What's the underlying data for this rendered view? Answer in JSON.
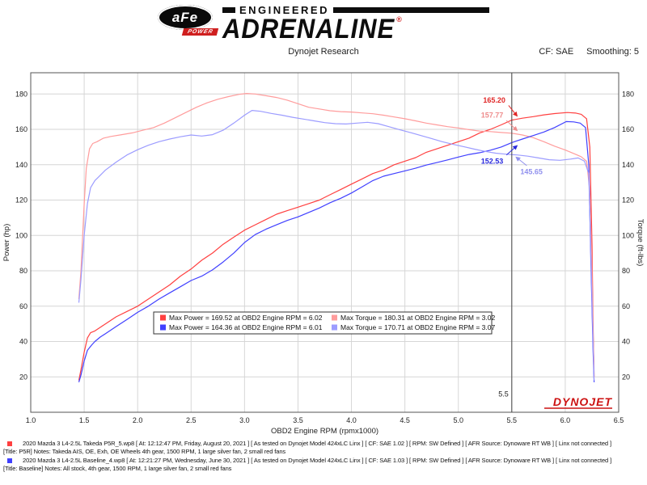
{
  "header": {
    "logo": {
      "afe": "aFe",
      "power": "POWER",
      "engineered": "ENGINEERED",
      "adrenaline": "ADRENALINE",
      "reg": "®"
    },
    "subtitle": "Dynojet Research",
    "cf": "CF: SAE",
    "smoothing": "Smoothing: 5"
  },
  "chart_data": {
    "type": "line",
    "title": "",
    "xlabel": "OBD2 Engine RPM (rpmx1000)",
    "ylabel_left": "Power (hp)",
    "ylabel_right": "Torque (ft-lbs)",
    "xlim": [
      1.0,
      6.5
    ],
    "ylim": [
      0,
      192
    ],
    "xticks": [
      1.0,
      1.5,
      2.0,
      2.5,
      3.0,
      3.5,
      4.0,
      4.5,
      5.0,
      5.5,
      6.0,
      6.5
    ],
    "yticks": [
      20,
      40,
      60,
      80,
      100,
      120,
      140,
      160,
      180
    ],
    "grid": true,
    "cursor": {
      "x": 5.5,
      "label": "5.5"
    },
    "watermark": {
      "text": "DYNOJET",
      "color": "#cc1111"
    },
    "series": [
      {
        "id": "takeda-power",
        "name": "Takeda Power (hp)",
        "color": "#ff4040",
        "points": [
          [
            1.45,
            18
          ],
          [
            1.47,
            24
          ],
          [
            1.5,
            34
          ],
          [
            1.53,
            42
          ],
          [
            1.56,
            45
          ],
          [
            1.6,
            46
          ],
          [
            1.65,
            48
          ],
          [
            1.7,
            50
          ],
          [
            1.8,
            54
          ],
          [
            1.9,
            57
          ],
          [
            2.0,
            60
          ],
          [
            2.1,
            64
          ],
          [
            2.2,
            68
          ],
          [
            2.3,
            72
          ],
          [
            2.4,
            77
          ],
          [
            2.5,
            81
          ],
          [
            2.6,
            86
          ],
          [
            2.7,
            90
          ],
          [
            2.8,
            95
          ],
          [
            2.9,
            99
          ],
          [
            3.0,
            103
          ],
          [
            3.1,
            106
          ],
          [
            3.2,
            109
          ],
          [
            3.3,
            112
          ],
          [
            3.4,
            114
          ],
          [
            3.5,
            116
          ],
          [
            3.6,
            118
          ],
          [
            3.7,
            120
          ],
          [
            3.8,
            123
          ],
          [
            3.9,
            126
          ],
          [
            4.0,
            129
          ],
          [
            4.1,
            132
          ],
          [
            4.2,
            135
          ],
          [
            4.3,
            137
          ],
          [
            4.4,
            140
          ],
          [
            4.5,
            142
          ],
          [
            4.6,
            144
          ],
          [
            4.7,
            147
          ],
          [
            4.8,
            149
          ],
          [
            4.9,
            151
          ],
          [
            5.0,
            153
          ],
          [
            5.1,
            155
          ],
          [
            5.2,
            158
          ],
          [
            5.3,
            160
          ],
          [
            5.4,
            162.5
          ],
          [
            5.5,
            165.2
          ],
          [
            5.6,
            166.3
          ],
          [
            5.7,
            167.2
          ],
          [
            5.8,
            168.2
          ],
          [
            5.9,
            168.9
          ],
          [
            6.02,
            169.5
          ],
          [
            6.1,
            169.2
          ],
          [
            6.15,
            168.5
          ],
          [
            6.2,
            166
          ],
          [
            6.23,
            150
          ],
          [
            6.25,
            95
          ],
          [
            6.26,
            50
          ],
          [
            6.27,
            20
          ]
        ]
      },
      {
        "id": "takeda-torque",
        "name": "Takeda Torque (ft-lbs)",
        "color": "#ff9c9c",
        "points": [
          [
            1.45,
            64
          ],
          [
            1.47,
            80
          ],
          [
            1.5,
            118
          ],
          [
            1.52,
            138
          ],
          [
            1.55,
            149
          ],
          [
            1.58,
            152
          ],
          [
            1.62,
            153
          ],
          [
            1.68,
            155
          ],
          [
            1.75,
            156
          ],
          [
            1.85,
            157
          ],
          [
            1.95,
            158
          ],
          [
            2.05,
            159.5
          ],
          [
            2.15,
            161
          ],
          [
            2.25,
            163.5
          ],
          [
            2.35,
            166.5
          ],
          [
            2.45,
            169.5
          ],
          [
            2.55,
            172.5
          ],
          [
            2.65,
            175
          ],
          [
            2.75,
            177
          ],
          [
            2.85,
            178.5
          ],
          [
            2.95,
            179.8
          ],
          [
            3.02,
            180.3
          ],
          [
            3.1,
            180
          ],
          [
            3.2,
            179
          ],
          [
            3.3,
            178
          ],
          [
            3.4,
            176.5
          ],
          [
            3.5,
            174.5
          ],
          [
            3.6,
            172.5
          ],
          [
            3.7,
            171.5
          ],
          [
            3.8,
            170.5
          ],
          [
            3.9,
            170
          ],
          [
            4.0,
            169.8
          ],
          [
            4.1,
            169.3
          ],
          [
            4.2,
            168.8
          ],
          [
            4.3,
            168
          ],
          [
            4.4,
            167
          ],
          [
            4.5,
            166
          ],
          [
            4.6,
            164.8
          ],
          [
            4.7,
            163.5
          ],
          [
            4.8,
            162.5
          ],
          [
            4.9,
            161.5
          ],
          [
            5.0,
            160.8
          ],
          [
            5.1,
            159.8
          ],
          [
            5.2,
            159
          ],
          [
            5.3,
            158.7
          ],
          [
            5.4,
            158.2
          ],
          [
            5.5,
            157.8
          ],
          [
            5.6,
            156.8
          ],
          [
            5.7,
            155.3
          ],
          [
            5.8,
            153
          ],
          [
            5.9,
            150.5
          ],
          [
            6.0,
            148.3
          ],
          [
            6.1,
            145.8
          ],
          [
            6.15,
            144.5
          ],
          [
            6.2,
            142
          ],
          [
            6.23,
            125
          ],
          [
            6.25,
            80
          ],
          [
            6.26,
            45
          ],
          [
            6.27,
            20
          ]
        ]
      },
      {
        "id": "baseline-power",
        "name": "Baseline Power (hp)",
        "color": "#4040ff",
        "points": [
          [
            1.45,
            17
          ],
          [
            1.47,
            21
          ],
          [
            1.5,
            29
          ],
          [
            1.53,
            35
          ],
          [
            1.57,
            38
          ],
          [
            1.6,
            40
          ],
          [
            1.65,
            42.5
          ],
          [
            1.7,
            44.5
          ],
          [
            1.8,
            48.5
          ],
          [
            1.9,
            52.5
          ],
          [
            2.0,
            56.5
          ],
          [
            2.1,
            60
          ],
          [
            2.2,
            64
          ],
          [
            2.3,
            67.5
          ],
          [
            2.4,
            71
          ],
          [
            2.5,
            74.5
          ],
          [
            2.6,
            77
          ],
          [
            2.7,
            80.5
          ],
          [
            2.8,
            85
          ],
          [
            2.9,
            90
          ],
          [
            3.0,
            96
          ],
          [
            3.1,
            100.5
          ],
          [
            3.2,
            103.5
          ],
          [
            3.3,
            106
          ],
          [
            3.4,
            108.5
          ],
          [
            3.5,
            110.5
          ],
          [
            3.6,
            113
          ],
          [
            3.7,
            115.5
          ],
          [
            3.8,
            118.5
          ],
          [
            3.9,
            121
          ],
          [
            4.0,
            124
          ],
          [
            4.1,
            127.5
          ],
          [
            4.2,
            131
          ],
          [
            4.3,
            133.5
          ],
          [
            4.4,
            135
          ],
          [
            4.5,
            136.5
          ],
          [
            4.6,
            138
          ],
          [
            4.7,
            139.8
          ],
          [
            4.8,
            141.2
          ],
          [
            4.9,
            142.7
          ],
          [
            5.0,
            144.3
          ],
          [
            5.1,
            145.8
          ],
          [
            5.2,
            146.8
          ],
          [
            5.3,
            148.2
          ],
          [
            5.4,
            150
          ],
          [
            5.5,
            152.5
          ],
          [
            5.6,
            154.5
          ],
          [
            5.7,
            156.5
          ],
          [
            5.8,
            158.5
          ],
          [
            5.9,
            161
          ],
          [
            6.01,
            164.4
          ],
          [
            6.08,
            164.2
          ],
          [
            6.14,
            163.5
          ],
          [
            6.19,
            161
          ],
          [
            6.22,
            140
          ],
          [
            6.24,
            85
          ],
          [
            6.26,
            35
          ],
          [
            6.27,
            17
          ]
        ]
      },
      {
        "id": "baseline-torque",
        "name": "Baseline Torque (ft-lbs)",
        "color": "#9c9cff",
        "points": [
          [
            1.45,
            62
          ],
          [
            1.47,
            75
          ],
          [
            1.5,
            100
          ],
          [
            1.53,
            118
          ],
          [
            1.56,
            127
          ],
          [
            1.6,
            131
          ],
          [
            1.65,
            134
          ],
          [
            1.7,
            137
          ],
          [
            1.8,
            141.5
          ],
          [
            1.9,
            145.5
          ],
          [
            2.0,
            148.5
          ],
          [
            2.1,
            151
          ],
          [
            2.2,
            153
          ],
          [
            2.3,
            154.5
          ],
          [
            2.4,
            155.8
          ],
          [
            2.5,
            156.8
          ],
          [
            2.6,
            156.2
          ],
          [
            2.7,
            157
          ],
          [
            2.8,
            159.5
          ],
          [
            2.9,
            163.5
          ],
          [
            3.0,
            168
          ],
          [
            3.07,
            170.7
          ],
          [
            3.15,
            170.2
          ],
          [
            3.25,
            169
          ],
          [
            3.35,
            168
          ],
          [
            3.45,
            166.8
          ],
          [
            3.55,
            165.8
          ],
          [
            3.65,
            164.8
          ],
          [
            3.75,
            163.8
          ],
          [
            3.85,
            163.2
          ],
          [
            3.95,
            163
          ],
          [
            4.05,
            163.5
          ],
          [
            4.15,
            164
          ],
          [
            4.25,
            163.2
          ],
          [
            4.35,
            161.5
          ],
          [
            4.45,
            159.8
          ],
          [
            4.55,
            158.2
          ],
          [
            4.65,
            156.5
          ],
          [
            4.75,
            154.8
          ],
          [
            4.85,
            153
          ],
          [
            4.95,
            151.5
          ],
          [
            5.05,
            150.2
          ],
          [
            5.15,
            148.8
          ],
          [
            5.25,
            147.5
          ],
          [
            5.35,
            146.5
          ],
          [
            5.45,
            145.9
          ],
          [
            5.55,
            145.5
          ],
          [
            5.65,
            144.8
          ],
          [
            5.75,
            143.8
          ],
          [
            5.85,
            142.8
          ],
          [
            5.95,
            142.5
          ],
          [
            6.05,
            143.2
          ],
          [
            6.12,
            143.8
          ],
          [
            6.18,
            142
          ],
          [
            6.22,
            135
          ],
          [
            6.24,
            90
          ],
          [
            6.26,
            40
          ],
          [
            6.27,
            18
          ]
        ]
      }
    ],
    "annotations": [
      {
        "text": "165.20",
        "color": "#e02828",
        "anchor": "end",
        "tx": 5.44,
        "ty": 176.5,
        "sx": 5.47,
        "sy": 173.5,
        "ax": 5.55,
        "ay": 167.5
      },
      {
        "text": "157.77",
        "color": "#ee8c8c",
        "anchor": "end",
        "tx": 5.42,
        "ty": 168.0,
        "sx": 5.45,
        "sy": 165.0,
        "ax": 5.55,
        "ay": 159.3
      },
      {
        "text": "152.53",
        "color": "#2828dd",
        "anchor": "end",
        "tx": 5.42,
        "ty": 142.0,
        "sx": 5.45,
        "sy": 145.5,
        "ax": 5.55,
        "ay": 150.8
      },
      {
        "text": "145.65",
        "color": "#9090ee",
        "anchor": "start",
        "tx": 5.58,
        "ty": 136.0,
        "sx": 5.64,
        "sy": 139.5,
        "ax": 5.54,
        "ay": 144.3
      }
    ],
    "legend": {
      "position": "bottom-center-inside",
      "rows": [
        [
          {
            "color": "#ff4040",
            "label": "Max Power = 169.52 at OBD2 Engine RPM = 6.02"
          },
          {
            "color": "#ff9c9c",
            "label": "Max Torque = 180.31 at OBD2 Engine RPM = 3.02"
          }
        ],
        [
          {
            "color": "#4040ff",
            "label": "Max Power = 164.36 at OBD2 Engine RPM = 6.01"
          },
          {
            "color": "#9c9cff",
            "label": "Max Torque = 170.71 at OBD2 Engine RPM = 3.07"
          }
        ]
      ]
    }
  },
  "footer": {
    "runs": [
      {
        "marker_color": "#ff4040",
        "line1": "2020 Mazda 3 L4-2.5L Takeda P5R_5.wp8  [ At: 12:12:47 PM, Friday, August 20, 2021 ]  [ As tested on Dynojet Model 424xLC Linx ]  [ CF: SAE 1.02 ]  [ RPM: SW Defined ]  [ AFR Source: Dynoware RT WB ]  [ Linx not connected ]",
        "line2": "[Title: P5R]  Notes: Takeda AIS, OE, Exh, OE Wheels 4th gear, 1500 RPM, 1 large silver fan, 2 small red fans"
      },
      {
        "marker_color": "#4040ff",
        "line1": "2020 Mazda 3 L4-2.5L Baseline_4.wp8  [ At: 12:21:27 PM, Wednesday, June 30, 2021 ]  [ As tested on Dynojet Model 424xLC Linx ]  [ CF: SAE 1.03 ]  [ RPM: SW Defined ]  [ AFR Source: Dynoware RT WB ]  [ Linx not connected ]",
        "line2": "[Title: Baseline]  Notes: All stock, 4th gear, 1500 RPM, 1 large silver fan, 2 small red fans"
      }
    ]
  }
}
